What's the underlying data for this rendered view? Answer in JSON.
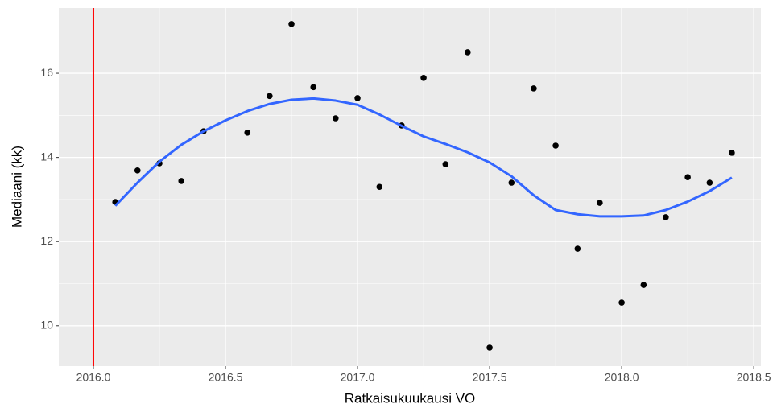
{
  "chart_data": {
    "type": "scatter",
    "x_label": "Ratkaisukuukausi VO",
    "y_label": "Mediaani (kk)",
    "xlim": [
      2015.869,
      2018.527
    ],
    "ylim": [
      9.04,
      17.55
    ],
    "xticks": [
      {
        "value": 2016,
        "label": "2016.0"
      },
      {
        "value": 2016.5,
        "label": "2016.5"
      },
      {
        "value": 2017,
        "label": "2017.0"
      },
      {
        "value": 2017.5,
        "label": "2017.5"
      },
      {
        "value": 2018,
        "label": "2018.0"
      },
      {
        "value": 2018.5,
        "label": "2018.5"
      }
    ],
    "yticks": [
      10,
      12,
      14,
      16
    ],
    "x_minor_grid": [
      2016.25,
      2016.75,
      2017.25,
      2017.75,
      2018.25
    ],
    "y_minor_grid": [
      11,
      13,
      15,
      17
    ],
    "grid": true,
    "vline": {
      "value": 2016,
      "color": "#ff0000"
    },
    "series": [
      {
        "type": "scatter",
        "color": "#000000",
        "x": [
          2016.083,
          2016.167,
          2016.25,
          2016.333,
          2016.417,
          2016.583,
          2016.667,
          2016.75,
          2016.833,
          2016.917,
          2017.0,
          2017.083,
          2017.167,
          2017.25,
          2017.333,
          2017.417,
          2017.5,
          2017.583,
          2017.667,
          2017.75,
          2017.833,
          2017.917,
          2018.0,
          2018.083,
          2018.167,
          2018.25,
          2018.333,
          2018.417
        ],
        "values": [
          12.94,
          13.69,
          13.86,
          13.44,
          14.62,
          14.59,
          15.46,
          17.17,
          15.67,
          14.93,
          15.41,
          13.3,
          14.76,
          15.89,
          13.84,
          16.5,
          9.48,
          13.4,
          15.64,
          14.28,
          11.83,
          12.92,
          10.55,
          10.97,
          12.58,
          13.53,
          13.4,
          14.11
        ]
      },
      {
        "type": "line",
        "color": "#3366ff",
        "x": [
          2016.083,
          2016.167,
          2016.25,
          2016.333,
          2016.417,
          2016.5,
          2016.583,
          2016.667,
          2016.75,
          2016.833,
          2016.917,
          2017.0,
          2017.083,
          2017.167,
          2017.25,
          2017.333,
          2017.417,
          2017.5,
          2017.583,
          2017.667,
          2017.75,
          2017.833,
          2017.917,
          2018.0,
          2018.083,
          2018.167,
          2018.25,
          2018.333,
          2018.417
        ],
        "values": [
          12.85,
          13.4,
          13.9,
          14.3,
          14.62,
          14.88,
          15.1,
          15.27,
          15.37,
          15.4,
          15.35,
          15.25,
          15.02,
          14.75,
          14.5,
          14.32,
          14.12,
          13.88,
          13.55,
          13.1,
          12.75,
          12.65,
          12.6,
          12.6,
          12.62,
          12.75,
          12.95,
          13.2,
          13.52
        ]
      }
    ]
  }
}
